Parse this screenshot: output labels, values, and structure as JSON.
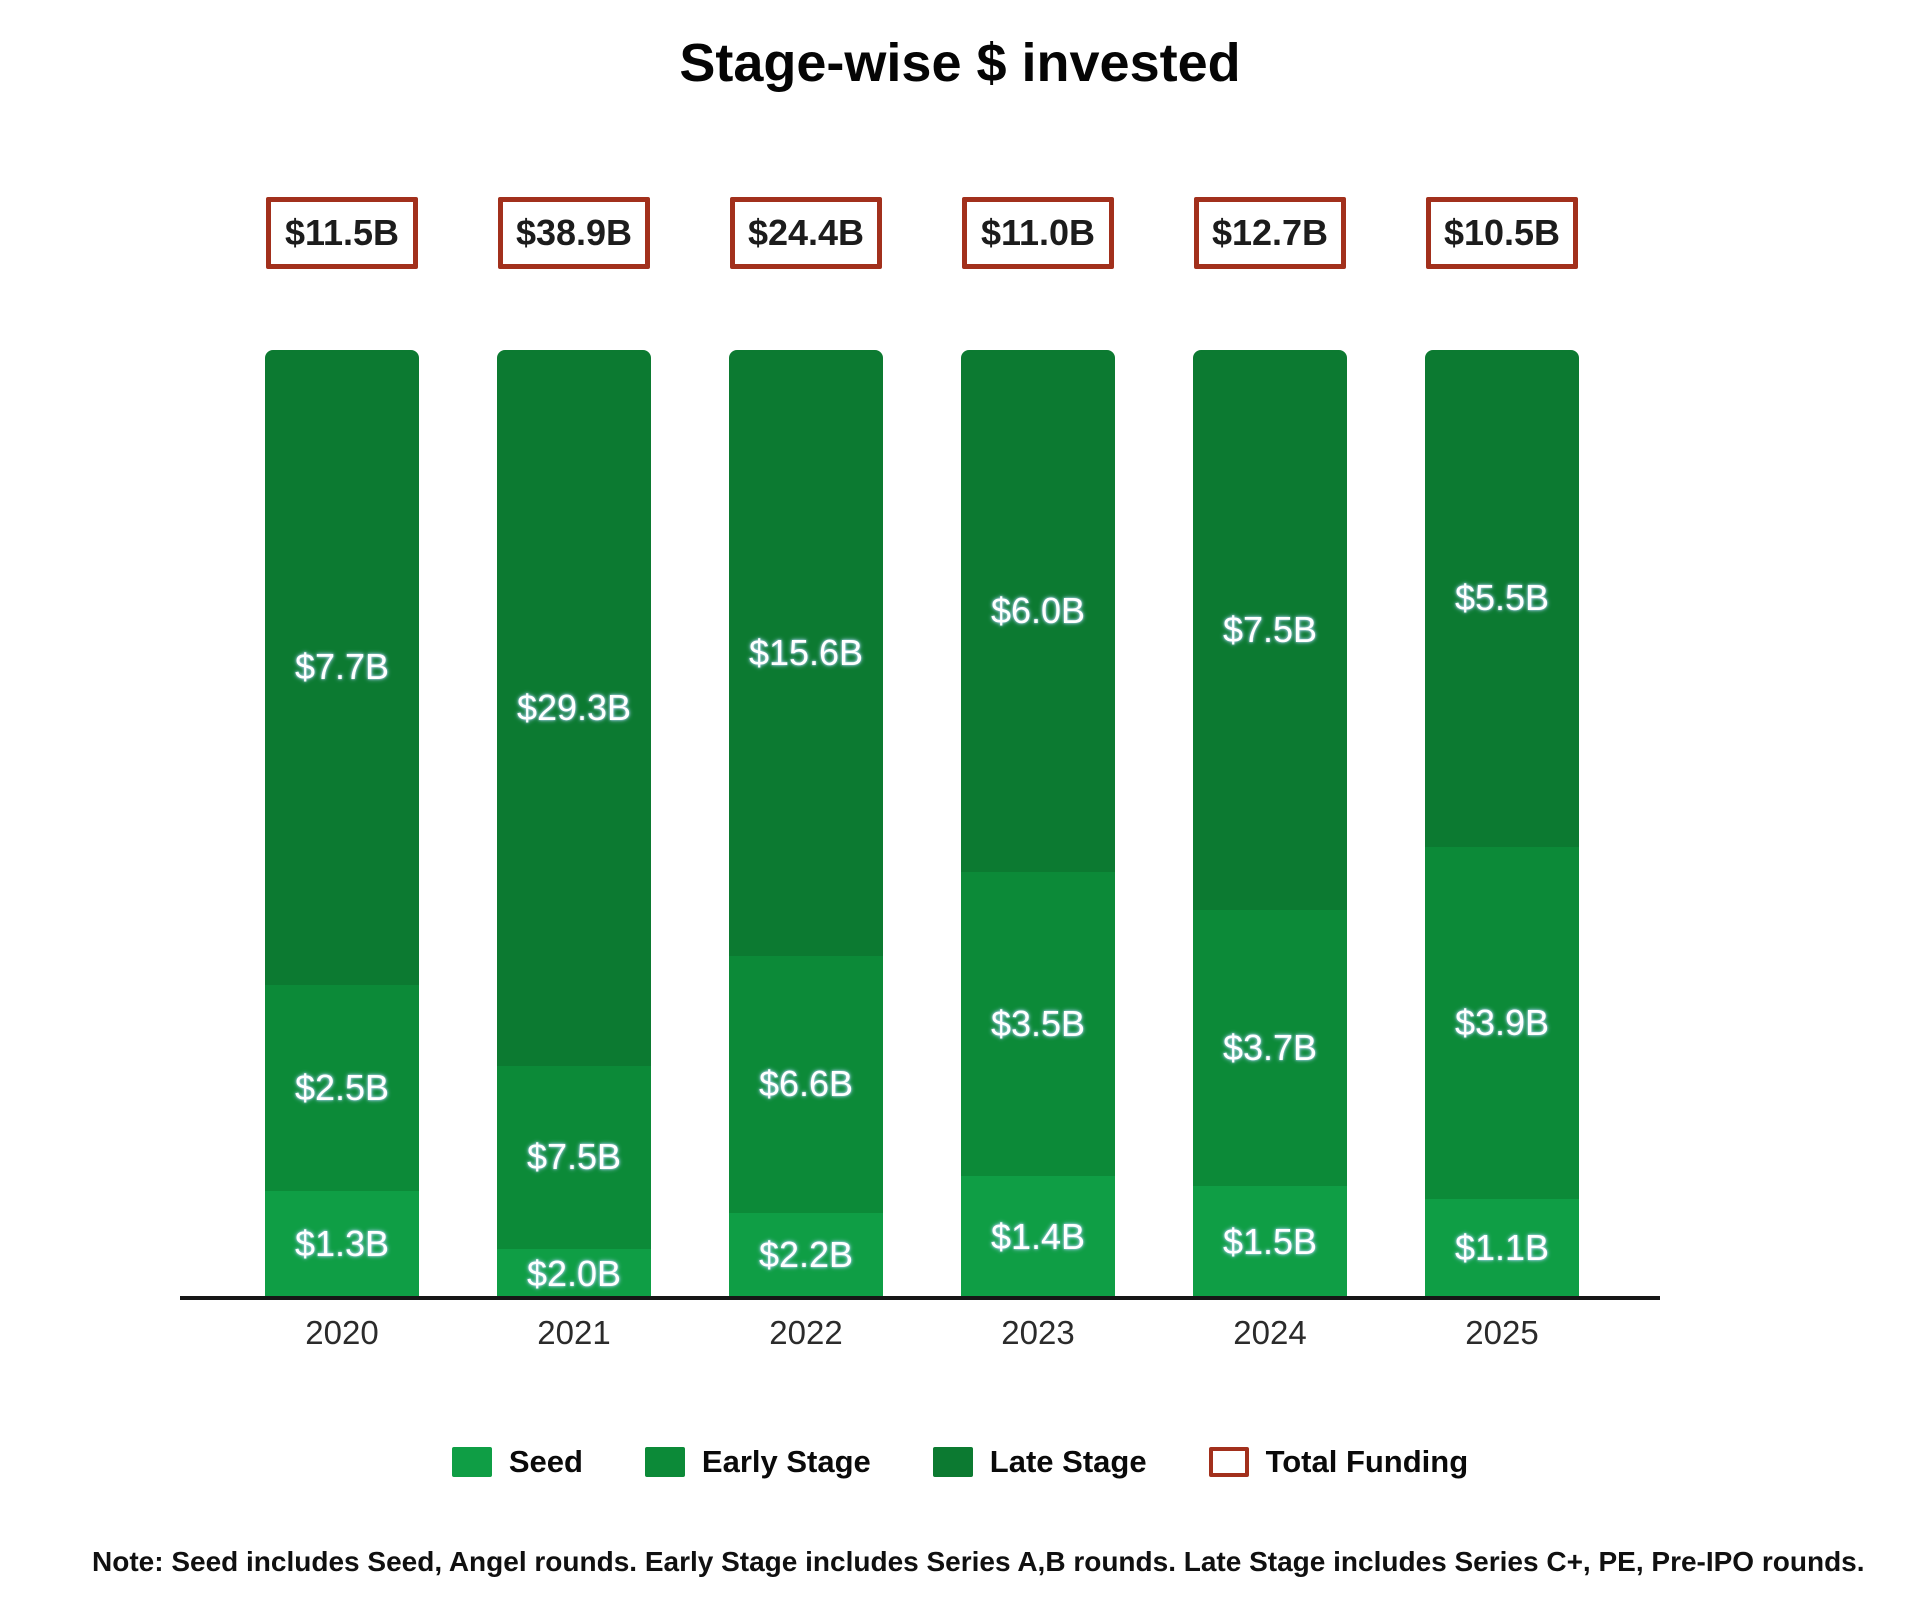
{
  "title": "Stage-wise $ invested",
  "note": "Note: Seed includes Seed, Angel rounds. Early Stage includes Series A,B rounds. Late Stage includes Series C+, PE, Pre-IPO rounds.",
  "colors": {
    "seed": "#0f9e45",
    "early_stage": "#0c8a38",
    "late_stage": "#0c7a31",
    "total_border": "#a2301c",
    "axis": "#161616",
    "label_text": "#ffffff",
    "box_text": "#1c1c1c"
  },
  "legend": [
    {
      "label": "Seed",
      "swatch": "seed"
    },
    {
      "label": "Early Stage",
      "swatch": "early_stage"
    },
    {
      "label": "Late Stage",
      "swatch": "late_stage"
    },
    {
      "label": "Total Funding",
      "swatch": "total_outline"
    }
  ],
  "chart_data": {
    "type": "bar",
    "stacked": true,
    "normalized_to_full_height": true,
    "title": "Stage-wise $ invested",
    "xlabel": "",
    "ylabel": "",
    "grid": false,
    "legend_position": "bottom",
    "categories": [
      "2020",
      "2021",
      "2022",
      "2023",
      "2024",
      "2025"
    ],
    "series": [
      {
        "name": "Seed",
        "color_key": "seed",
        "values": [
          1.3,
          2.0,
          2.2,
          1.4,
          1.5,
          1.1
        ],
        "labels": [
          "$1.3B",
          "$2.0B",
          "$2.2B",
          "$1.4B",
          "$1.5B",
          "$1.1B"
        ]
      },
      {
        "name": "Early Stage",
        "color_key": "early_stage",
        "values": [
          2.5,
          7.5,
          6.6,
          3.5,
          3.7,
          3.9
        ],
        "labels": [
          "$2.5B",
          "$7.5B",
          "$6.6B",
          "$3.5B",
          "$3.7B",
          "$3.9B"
        ]
      },
      {
        "name": "Late Stage",
        "color_key": "late_stage",
        "values": [
          7.7,
          29.3,
          15.6,
          6.0,
          7.5,
          5.5
        ],
        "labels": [
          "$7.7B",
          "$29.3B",
          "$15.6B",
          "$6.0B",
          "$7.5B",
          "$5.5B"
        ]
      }
    ],
    "totals": {
      "name": "Total Funding",
      "values": [
        11.5,
        38.9,
        24.4,
        11.0,
        12.7,
        10.5
      ],
      "labels": [
        "$11.5B",
        "$38.9B",
        "$24.4B",
        "$11.0B",
        "$12.7B",
        "$10.5B"
      ]
    }
  }
}
